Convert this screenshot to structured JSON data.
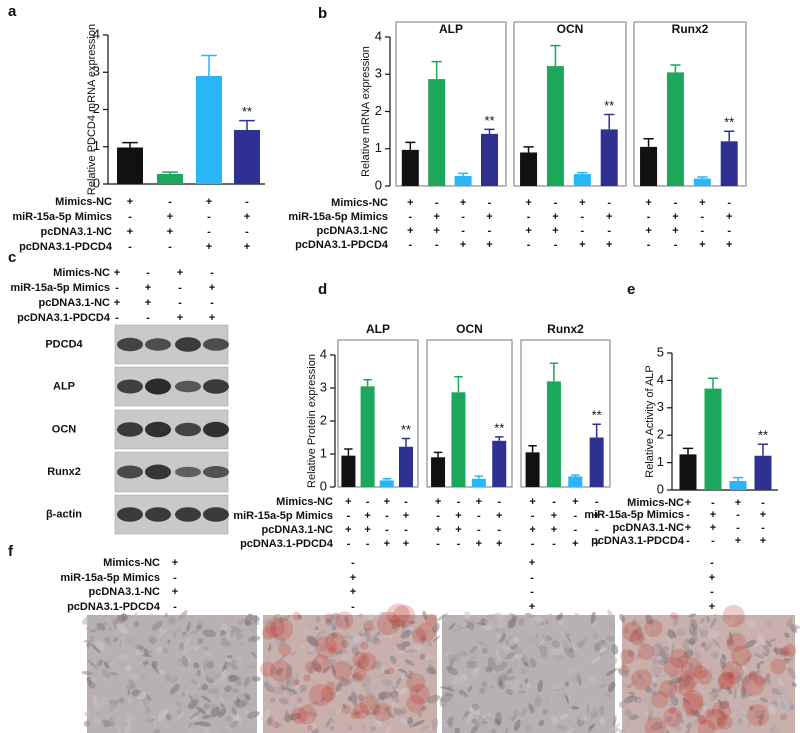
{
  "chart_data": [
    {
      "type": "bar",
      "panel_label": "a",
      "y_label": "Relative PDCD4 mRNA expression",
      "ylim": [
        0,
        4
      ],
      "yticks": [
        0,
        1,
        2,
        3,
        4
      ],
      "colors": [
        "#111111",
        "#1ba85a",
        "#29b6f6",
        "#2e3192"
      ],
      "values": [
        0.98,
        0.27,
        2.9,
        1.45
      ],
      "errors": [
        0.13,
        0.05,
        0.55,
        0.25
      ],
      "sig_labels": [
        null,
        null,
        null,
        "**"
      ],
      "treatments": [
        {
          "name": "Mimics-NC",
          "signs": [
            "+",
            "-",
            "+",
            "-"
          ]
        },
        {
          "name": "miR-15a-5p Mimics",
          "signs": [
            "-",
            "+",
            "-",
            "+"
          ]
        },
        {
          "name": "pcDNA3.1-NC",
          "signs": [
            "+",
            "+",
            "-",
            "-"
          ]
        },
        {
          "name": "pcDNA3.1-PDCD4",
          "signs": [
            "-",
            "-",
            "+",
            "+"
          ]
        }
      ]
    },
    {
      "type": "bar",
      "panel_label": "b",
      "y_label": "Relative mRNA expression",
      "ylim": [
        0,
        4
      ],
      "yticks": [
        0,
        1,
        2,
        3,
        4
      ],
      "colors": [
        "#111111",
        "#1ba85a",
        "#29b6f6",
        "#2e3192"
      ],
      "panels": [
        {
          "title": "ALP",
          "values": [
            0.97,
            2.87,
            0.27,
            1.4
          ],
          "errors": [
            0.2,
            0.47,
            0.07,
            0.12
          ],
          "sig_labels": [
            null,
            null,
            null,
            "**"
          ]
        },
        {
          "title": "OCN",
          "values": [
            0.9,
            3.22,
            0.32,
            1.52
          ],
          "errors": [
            0.15,
            0.55,
            0.04,
            0.4
          ],
          "sig_labels": [
            null,
            null,
            null,
            "**"
          ]
        },
        {
          "title": "Runx2",
          "values": [
            1.05,
            3.05,
            0.2,
            1.2
          ],
          "errors": [
            0.22,
            0.2,
            0.04,
            0.27
          ],
          "sig_labels": [
            null,
            null,
            null,
            "**"
          ]
        }
      ],
      "treatments": [
        {
          "name": "Mimics-NC",
          "signs": [
            "+",
            "-",
            "+",
            "-"
          ]
        },
        {
          "name": "miR-15a-5p Mimics",
          "signs": [
            "-",
            "+",
            "-",
            "+"
          ]
        },
        {
          "name": "pcDNA3.1-NC",
          "signs": [
            "+",
            "+",
            "-",
            "-"
          ]
        },
        {
          "name": "pcDNA3.1-PDCD4",
          "signs": [
            "-",
            "-",
            "+",
            "+"
          ]
        }
      ]
    },
    {
      "type": "bar",
      "panel_label": "d",
      "y_label": "Relative Protein expression",
      "ylim": [
        0,
        4
      ],
      "yticks": [
        0,
        1,
        2,
        3,
        4
      ],
      "colors": [
        "#111111",
        "#1ba85a",
        "#29b6f6",
        "#2e3192"
      ],
      "panels": [
        {
          "title": "ALP",
          "values": [
            0.95,
            3.05,
            0.2,
            1.22
          ],
          "errors": [
            0.2,
            0.2,
            0.05,
            0.25
          ],
          "sig_labels": [
            null,
            null,
            null,
            "**"
          ]
        },
        {
          "title": "OCN",
          "values": [
            0.9,
            2.87,
            0.25,
            1.4
          ],
          "errors": [
            0.15,
            0.47,
            0.08,
            0.12
          ],
          "sig_labels": [
            null,
            null,
            null,
            "**"
          ]
        },
        {
          "title": "Runx2",
          "values": [
            1.05,
            3.2,
            0.32,
            1.5
          ],
          "errors": [
            0.2,
            0.55,
            0.04,
            0.4
          ],
          "sig_labels": [
            null,
            null,
            null,
            "**"
          ]
        }
      ],
      "treatments": [
        {
          "name": "Mimics-NC",
          "signs": [
            "+",
            "-",
            "+",
            "-"
          ]
        },
        {
          "name": "miR-15a-5p Mimics",
          "signs": [
            "-",
            "+",
            "-",
            "+"
          ]
        },
        {
          "name": "pcDNA3.1-NC",
          "signs": [
            "+",
            "+",
            "-",
            "-"
          ]
        },
        {
          "name": "pcDNA3.1-PDCD4",
          "signs": [
            "-",
            "-",
            "+",
            "+"
          ]
        }
      ]
    },
    {
      "type": "bar",
      "panel_label": "e",
      "y_label": "Relative Activity of ALP",
      "ylim": [
        0,
        5
      ],
      "yticks": [
        0,
        1,
        2,
        3,
        4,
        5
      ],
      "colors": [
        "#111111",
        "#1ba85a",
        "#29b6f6",
        "#2e3192"
      ],
      "values": [
        1.3,
        3.7,
        0.33,
        1.25
      ],
      "errors": [
        0.22,
        0.38,
        0.12,
        0.42
      ],
      "sig_labels": [
        null,
        null,
        null,
        "**"
      ],
      "treatments": [
        {
          "name": "Mimics-NC",
          "signs": [
            "+",
            "-",
            "+",
            "-"
          ]
        },
        {
          "name": "miR-15a-5p Mimics",
          "signs": [
            "-",
            "+",
            "-",
            "+"
          ]
        },
        {
          "name": "pcDNA3.1-NC",
          "signs": [
            "+",
            "+",
            "-",
            "-"
          ]
        },
        {
          "name": "pcDNA3.1-PDCD4",
          "signs": [
            "-",
            "-",
            "+",
            "+"
          ]
        }
      ]
    }
  ],
  "blot": {
    "panel_label": "c",
    "bands": [
      "PDCD4",
      "ALP",
      "OCN",
      "Runx2",
      "β-actin"
    ],
    "treatments": [
      {
        "name": "Mimics-NC",
        "signs": [
          "+",
          "-",
          "+",
          "-"
        ]
      },
      {
        "name": "miR-15a-5p Mimics",
        "signs": [
          "-",
          "+",
          "-",
          "+"
        ]
      },
      {
        "name": "pcDNA3.1-NC",
        "signs": [
          "+",
          "+",
          "-",
          "-"
        ]
      },
      {
        "name": "pcDNA3.1-PDCD4",
        "signs": [
          "-",
          "-",
          "+",
          "+"
        ]
      }
    ]
  },
  "micrographs": {
    "panel_label": "f",
    "treatments": [
      {
        "name": "Mimics-NC",
        "signs": [
          "+",
          "-",
          "+",
          "-"
        ]
      },
      {
        "name": "miR-15a-5p Mimics",
        "signs": [
          "-",
          "+",
          "-",
          "+"
        ]
      },
      {
        "name": "pcDNA3.1-NC",
        "signs": [
          "+",
          "+",
          "-",
          "-"
        ]
      },
      {
        "name": "pcDNA3.1-PDCD4",
        "signs": [
          "-",
          "-",
          "+",
          "+"
        ]
      }
    ]
  }
}
